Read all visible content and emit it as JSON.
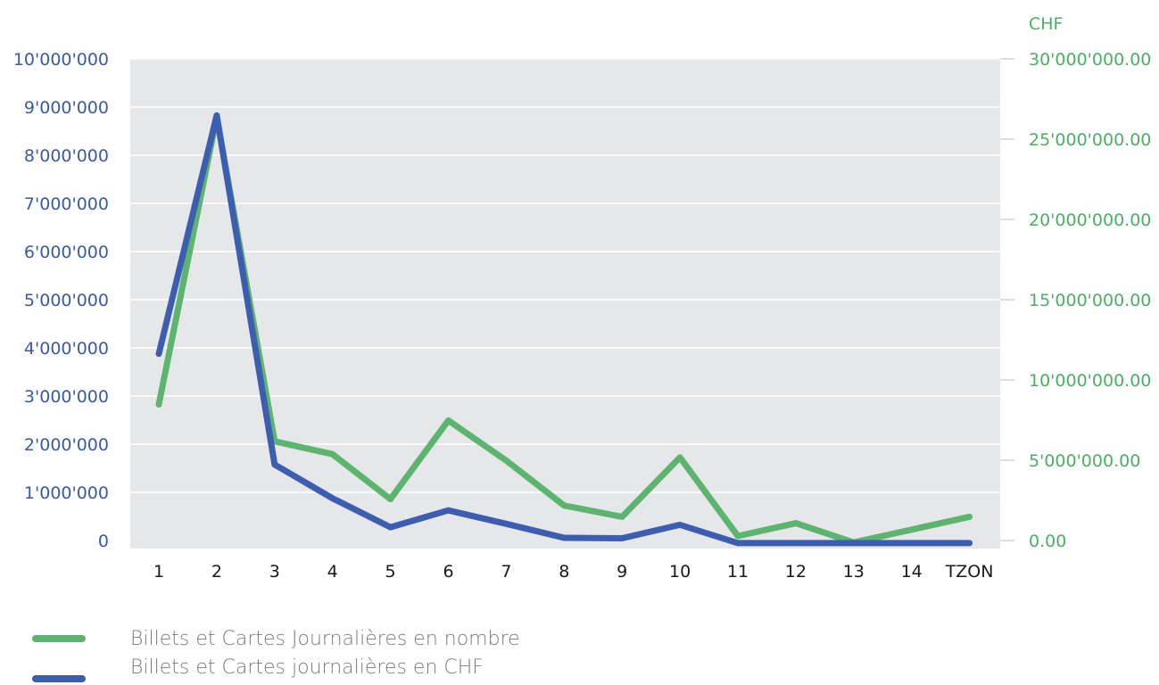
{
  "chart_data": {
    "type": "line",
    "categories": [
      "1",
      "2",
      "3",
      "4",
      "5",
      "6",
      "7",
      "8",
      "9",
      "10",
      "11",
      "12",
      "13",
      "14",
      "TZON"
    ],
    "y_left": {
      "ticks": [
        "0",
        "1'000'000",
        "2'000'000",
        "3'000'000",
        "4'000'000",
        "5'000'000",
        "6'000'000",
        "7'000'000",
        "8'000'000",
        "9'000'000",
        "10'000'000"
      ],
      "range": [
        0,
        10000000
      ]
    },
    "y_right": {
      "label": "CHF",
      "ticks": [
        "0.00",
        "5'000'000.00",
        "10'000'000.00",
        "15'000'000.00",
        "20'000'000.00",
        "25'000'000.00",
        "30'000'000.00"
      ],
      "range": [
        0,
        30000000
      ]
    },
    "series": [
      {
        "name": "Billets et Cartes Journalières en nombre",
        "axis": "right",
        "color": "#5cb46e",
        "values": [
          8700000,
          26600000,
          6400000,
          5600000,
          2800000,
          7700000,
          5200000,
          2400000,
          1700000,
          5400000,
          500000,
          1300000,
          100000,
          900000,
          1700000
        ]
      },
      {
        "name": "Billets et Cartes journalières en CHF",
        "axis": "left",
        "color": "#3d5eb0",
        "values": [
          3950000,
          8900000,
          1650000,
          950000,
          350000,
          700000,
          420000,
          130000,
          120000,
          400000,
          20000,
          20000,
          20000,
          20000,
          20000
        ]
      }
    ],
    "grid": true,
    "legend_position": "bottom-left"
  }
}
